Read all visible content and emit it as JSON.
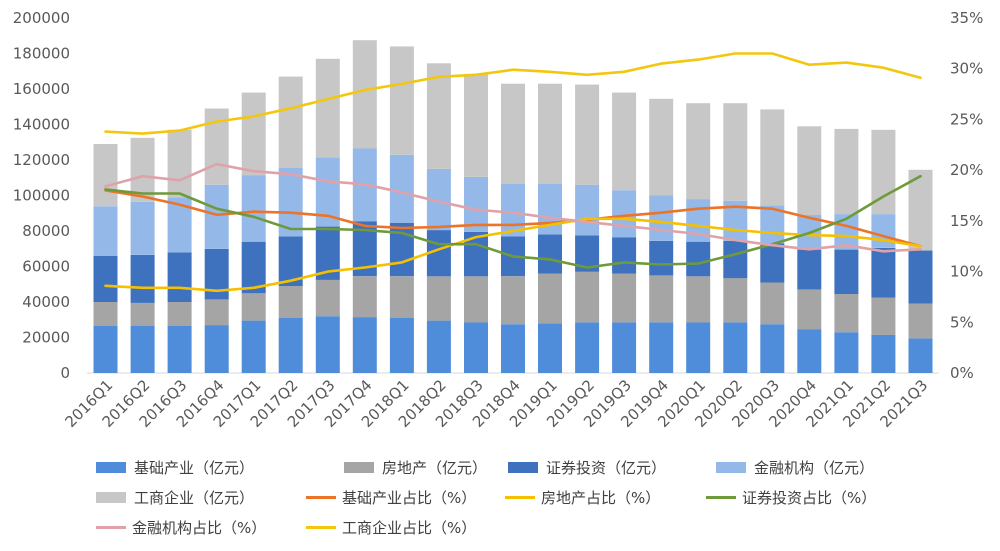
{
  "chart_data": {
    "type": "bar",
    "stacked": true,
    "categories": [
      "2016Q1",
      "2016Q2",
      "2016Q3",
      "2016Q4",
      "2017Q1",
      "2017Q2",
      "2017Q3",
      "2017Q4",
      "2018Q1",
      "2018Q2",
      "2018Q3",
      "2018Q4",
      "2019Q1",
      "2019Q2",
      "2019Q3",
      "2019Q4",
      "2020Q1",
      "2020Q2",
      "2020Q3",
      "2020Q4",
      "2021Q1",
      "2021Q2",
      "2021Q3"
    ],
    "ylim": [
      0,
      200000
    ],
    "y_ticks": [
      0,
      20000,
      40000,
      60000,
      80000,
      100000,
      120000,
      140000,
      160000,
      180000,
      200000
    ],
    "y2lim": [
      0,
      35
    ],
    "y2_ticks": [
      "0%",
      "5%",
      "10%",
      "15%",
      "20%",
      "25%",
      "30%",
      "35%"
    ],
    "grid": false,
    "legend": "bottom",
    "series": [
      {
        "name": "基础产业（亿元）",
        "type": "bar",
        "axis": "left",
        "color": "#4F8DDA",
        "values": [
          26500,
          26500,
          26500,
          27000,
          29500,
          31000,
          32000,
          31500,
          31000,
          29500,
          28500,
          27500,
          28000,
          28500,
          28500,
          28500,
          28500,
          28500,
          27500,
          24500,
          23000,
          21500,
          19500
        ]
      },
      {
        "name": "房地产（亿元）",
        "type": "bar",
        "axis": "left",
        "color": "#A5A5A5",
        "values": [
          13500,
          13000,
          13500,
          14500,
          15500,
          18000,
          20500,
          23000,
          23500,
          25000,
          26000,
          27000,
          28000,
          28500,
          27500,
          26500,
          26000,
          25000,
          23500,
          22500,
          21500,
          21000,
          19500
        ]
      },
      {
        "name": "证券投资（亿元）",
        "type": "bar",
        "axis": "left",
        "color": "#3E71BE",
        "values": [
          26000,
          27000,
          28000,
          28500,
          29000,
          28000,
          30000,
          31000,
          30000,
          26000,
          25000,
          22500,
          22000,
          20500,
          20500,
          19500,
          19500,
          21000,
          22000,
          22500,
          25000,
          28000,
          30000
        ]
      },
      {
        "name": "金融机构（亿元）",
        "type": "bar",
        "axis": "left",
        "color": "#94B9E8",
        "values": [
          28000,
          30000,
          31000,
          36000,
          37500,
          38500,
          39000,
          41000,
          38500,
          34500,
          31000,
          29500,
          28500,
          28500,
          26500,
          25500,
          24000,
          22500,
          21500,
          19500,
          20000,
          19000,
          0
        ]
      },
      {
        "name": "工商企业（亿元）",
        "type": "bar",
        "axis": "left",
        "color": "#C7C7C7",
        "values": [
          35000,
          36000,
          38000,
          43000,
          46500,
          51500,
          55500,
          61000,
          61000,
          59500,
          58000,
          56500,
          56500,
          56500,
          55000,
          54500,
          54000,
          55000,
          54000,
          50000,
          48000,
          47500,
          45500
        ]
      },
      {
        "name": "基础产业占比（%）",
        "type": "line",
        "axis": "right",
        "color": "#EB7428",
        "values": [
          18.0,
          17.4,
          16.6,
          15.6,
          15.9,
          15.8,
          15.5,
          14.5,
          14.3,
          14.4,
          14.6,
          14.6,
          14.8,
          15.1,
          15.5,
          15.8,
          16.2,
          16.4,
          16.2,
          15.3,
          14.5,
          13.5,
          12.5
        ]
      },
      {
        "name": "房地产占比（%）",
        "type": "line",
        "axis": "right",
        "color": "#F5C000",
        "values": [
          8.6,
          8.4,
          8.4,
          8.1,
          8.4,
          9.1,
          10.0,
          10.4,
          10.9,
          12.2,
          13.4,
          14.0,
          14.6,
          15.2,
          15.2,
          14.9,
          14.5,
          14.1,
          13.8,
          13.6,
          13.5,
          13.1,
          12.5
        ]
      },
      {
        "name": "证券投资占比（%）",
        "type": "line",
        "axis": "right",
        "color": "#6F9A3B",
        "values": [
          18.1,
          17.7,
          17.7,
          16.2,
          15.4,
          14.2,
          14.2,
          14.1,
          13.8,
          12.7,
          12.7,
          11.5,
          11.2,
          10.4,
          10.9,
          10.7,
          10.8,
          11.7,
          12.7,
          13.8,
          15.2,
          17.4,
          19.4
        ]
      },
      {
        "name": "金融机构占比（%）",
        "type": "line",
        "axis": "right",
        "color": "#E0A2A9",
        "values": [
          18.4,
          19.4,
          19.0,
          20.6,
          19.9,
          19.6,
          18.9,
          18.6,
          17.8,
          16.9,
          16.1,
          15.8,
          15.3,
          14.9,
          14.5,
          14.1,
          13.7,
          13.1,
          12.6,
          12.2,
          12.6,
          12.0,
          12.2
        ]
      },
      {
        "name": "工商企业占比（%）",
        "type": "line",
        "axis": "right",
        "color": "#F4C70F",
        "values": [
          23.8,
          23.6,
          23.9,
          24.8,
          25.3,
          26.1,
          27.0,
          27.9,
          28.5,
          29.2,
          29.4,
          29.9,
          29.7,
          29.4,
          29.7,
          30.5,
          30.9,
          31.5,
          31.5,
          30.4,
          30.6,
          30.1,
          29.1
        ]
      }
    ]
  }
}
